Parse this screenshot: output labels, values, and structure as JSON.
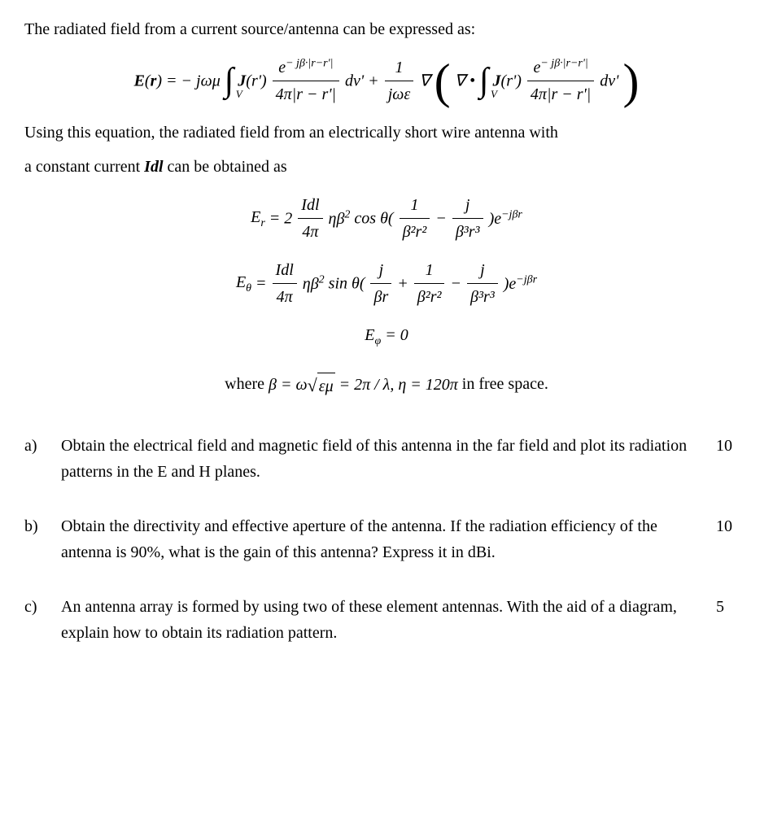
{
  "intro1": "The radiated field from a current source/antenna can be expressed as:",
  "intro2_a": "Using this equation, the radiated field from an electrically short wire antenna with",
  "intro2_b": "a constant current ",
  "intro2_c": " can be obtained as",
  "idl": "Idl",
  "where_label": "where ",
  "where_tail": " in free space.",
  "questions": [
    {
      "label": "a)",
      "text": "Obtain the electrical field and magnetic field of this antenna in the far field and plot its radiation patterns in the E and H planes.",
      "marks": "10"
    },
    {
      "label": "b)",
      "text": "Obtain the directivity and effective aperture of the antenna. If the radiation efficiency of the antenna is 90%, what is the gain of this antenna? Express it in dBi.",
      "marks": "10"
    },
    {
      "label": "c)",
      "text": "An antenna array is formed by using two of these element antennas. With the aid of a diagram, explain how to obtain its radiation pattern.",
      "marks": "5"
    }
  ],
  "eq": {
    "main_field": {
      "lhs": "E(r) = − jωμ",
      "greens_num": "e",
      "greens_exp": "− jβ·|r−r'|",
      "greens_den": "4π|r − r'|",
      "dv": " dv' + ",
      "one_over_jwe_num": "1",
      "one_over_jwe_den": "jωε",
      "nabla1": "∇",
      "nabla_dot": "∇ • ",
      "dv2": " dv'"
    },
    "Er": {
      "lhs": "E",
      "sub": "r",
      "eq": " = 2",
      "idl_num": "Idl",
      "idl_den": "4π",
      "mid": "ηβ",
      "mid_sup": "2",
      "costheta": " cos θ(",
      "t1_num": "1",
      "t1_den": "β²r²",
      "minus": " − ",
      "t2_num": "j",
      "t2_den": "β³r³",
      "tail": ")e",
      "tail_sup": "−jβr"
    },
    "Etheta": {
      "lhs": "E",
      "sub": "θ",
      "eq": " = ",
      "idl_num": "Idl",
      "idl_den": "4π",
      "mid": "ηβ",
      "mid_sup": "2",
      "sintheta": " sin θ(",
      "t0_num": "j",
      "t0_den": "βr",
      "plus": " + ",
      "t1_num": "1",
      "t1_den": "β²r²",
      "minus": " − ",
      "t2_num": "j",
      "t2_den": "β³r³",
      "tail": ")e",
      "tail_sup": "−jβr"
    },
    "Ephi": "E",
    "Ephi_sub": "φ",
    "Ephi_rhs": " = 0",
    "where": {
      "beta": "β = ω",
      "sqrt_content": "εμ",
      "eq2pi": " = 2π / λ,   η = 120π"
    }
  }
}
